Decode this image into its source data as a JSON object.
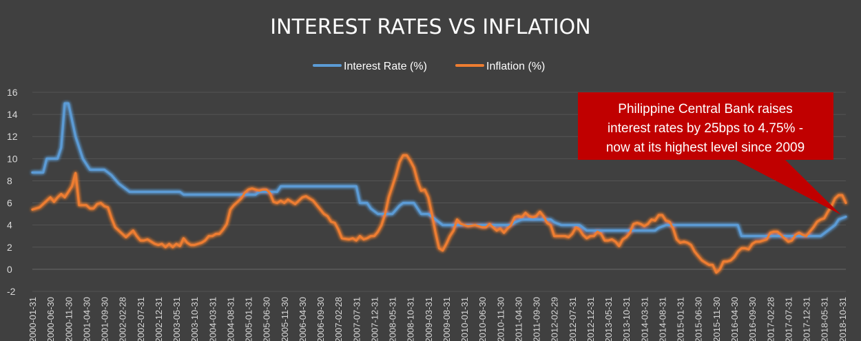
{
  "chart_data": {
    "type": "line",
    "title": "INTEREST RATES VS INFLATION",
    "ylim": [
      -2,
      16
    ],
    "y_ticks": [
      "16",
      "14",
      "12",
      "10",
      "8",
      "6",
      "4",
      "2",
      "0",
      "-2"
    ],
    "grid": "horizontal",
    "legend_position": "top-center",
    "x_tick_labels": [
      "2000-01-31",
      "2000-06-30",
      "2000-11-30",
      "2001-04-30",
      "2001-09-30",
      "2002-02-28",
      "2002-07-31",
      "2002-12-31",
      "2003-05-31",
      "2003-10-31",
      "2004-03-31",
      "2004-08-31",
      "2005-01-31",
      "2005-06-30",
      "2005-11-30",
      "2006-04-30",
      "2006-09-30",
      "2007-02-28",
      "2007-07-31",
      "2007-12-31",
      "2008-05-31",
      "2008-10-31",
      "2009-03-31",
      "2009-08-31",
      "2010-01-31",
      "2010-06-30",
      "2010-11-30",
      "2011-04-30",
      "2011-09-30",
      "2012-02-29",
      "2012-07-31",
      "2012-12-31",
      "2013-05-31",
      "2013-10-31",
      "2014-03-31",
      "2014-08-31",
      "2015-01-31",
      "2015-06-30",
      "2015-11-30",
      "2016-04-30",
      "2016-09-30",
      "2017-02-28",
      "2017-07-31",
      "2017-12-31",
      "2018-05-31",
      "2018-10-31"
    ],
    "x_start": "2000-01",
    "x_end": "2018-11",
    "series": [
      {
        "name": "Interest Rate (%)",
        "color": "#5b9bd5",
        "points": [
          [
            "2000-01",
            8.75
          ],
          [
            "2000-04",
            8.75
          ],
          [
            "2000-05",
            10.0
          ],
          [
            "2000-08",
            10.0
          ],
          [
            "2000-09",
            11.0
          ],
          [
            "2000-10",
            15.0
          ],
          [
            "2000-11",
            15.0
          ],
          [
            "2000-12",
            13.5
          ],
          [
            "2001-01",
            12.0
          ],
          [
            "2001-03",
            10.0
          ],
          [
            "2001-05",
            9.0
          ],
          [
            "2001-09",
            9.0
          ],
          [
            "2001-11",
            8.5
          ],
          [
            "2002-01",
            7.75
          ],
          [
            "2002-04",
            7.0
          ],
          [
            "2003-06",
            7.0
          ],
          [
            "2003-07",
            6.75
          ],
          [
            "2005-03",
            6.75
          ],
          [
            "2005-04",
            7.0
          ],
          [
            "2005-09",
            7.0
          ],
          [
            "2005-10",
            7.5
          ],
          [
            "2007-07",
            7.5
          ],
          [
            "2007-08",
            6.0
          ],
          [
            "2007-10",
            6.0
          ],
          [
            "2007-11",
            5.5
          ],
          [
            "2008-01",
            5.0
          ],
          [
            "2008-05",
            5.0
          ],
          [
            "2008-07",
            5.75
          ],
          [
            "2008-08",
            6.0
          ],
          [
            "2008-11",
            6.0
          ],
          [
            "2009-01",
            5.0
          ],
          [
            "2009-03",
            5.0
          ],
          [
            "2009-06",
            4.25
          ],
          [
            "2009-07",
            4.0
          ],
          [
            "2011-02",
            4.0
          ],
          [
            "2011-03",
            4.25
          ],
          [
            "2011-05",
            4.5
          ],
          [
            "2012-01",
            4.5
          ],
          [
            "2012-02",
            4.25
          ],
          [
            "2012-04",
            4.0
          ],
          [
            "2012-09",
            4.0
          ],
          [
            "2012-11",
            3.5
          ],
          [
            "2014-06",
            3.5
          ],
          [
            "2014-07",
            3.75
          ],
          [
            "2014-09",
            4.0
          ],
          [
            "2016-05",
            4.0
          ],
          [
            "2016-06",
            3.0
          ],
          [
            "2018-04",
            3.0
          ],
          [
            "2018-05",
            3.25
          ],
          [
            "2018-06",
            3.5
          ],
          [
            "2018-08",
            4.0
          ],
          [
            "2018-09",
            4.5
          ],
          [
            "2018-11",
            4.75
          ]
        ]
      },
      {
        "name": "Inflation (%)",
        "color": "#ed7d31",
        "points": [
          [
            "2000-01",
            5.4
          ],
          [
            "2000-03",
            5.6
          ],
          [
            "2000-05",
            6.2
          ],
          [
            "2000-06",
            6.5
          ],
          [
            "2000-07",
            6.1
          ],
          [
            "2000-08",
            6.5
          ],
          [
            "2000-09",
            6.8
          ],
          [
            "2000-10",
            6.5
          ],
          [
            "2000-11",
            7.0
          ],
          [
            "2000-12",
            7.5
          ],
          [
            "2001-01",
            8.7
          ],
          [
            "2001-02",
            5.8
          ],
          [
            "2001-04",
            5.8
          ],
          [
            "2001-05",
            5.5
          ],
          [
            "2001-06",
            5.5
          ],
          [
            "2001-07",
            5.9
          ],
          [
            "2001-08",
            6.0
          ],
          [
            "2001-09",
            5.7
          ],
          [
            "2001-10",
            5.6
          ],
          [
            "2001-11",
            4.6
          ],
          [
            "2001-12",
            3.8
          ],
          [
            "2002-02",
            3.2
          ],
          [
            "2002-03",
            2.9
          ],
          [
            "2002-05",
            3.5
          ],
          [
            "2002-06",
            3.0
          ],
          [
            "2002-07",
            2.6
          ],
          [
            "2002-08",
            2.6
          ],
          [
            "2002-09",
            2.7
          ],
          [
            "2002-11",
            2.3
          ],
          [
            "2002-12",
            2.2
          ],
          [
            "2003-01",
            2.3
          ],
          [
            "2003-02",
            2.0
          ],
          [
            "2003-03",
            2.3
          ],
          [
            "2003-04",
            2.0
          ],
          [
            "2003-05",
            2.3
          ],
          [
            "2003-06",
            2.1
          ],
          [
            "2003-07",
            2.8
          ],
          [
            "2003-08",
            2.4
          ],
          [
            "2003-09",
            2.2
          ],
          [
            "2003-10",
            2.2
          ],
          [
            "2003-12",
            2.4
          ],
          [
            "2004-01",
            2.6
          ],
          [
            "2004-02",
            3.0
          ],
          [
            "2004-03",
            3.0
          ],
          [
            "2004-04",
            3.2
          ],
          [
            "2004-05",
            3.2
          ],
          [
            "2004-06",
            3.6
          ],
          [
            "2004-07",
            4.1
          ],
          [
            "2004-08",
            5.4
          ],
          [
            "2004-09",
            5.8
          ],
          [
            "2004-10",
            6.1
          ],
          [
            "2004-11",
            6.4
          ],
          [
            "2004-12",
            6.9
          ],
          [
            "2005-01",
            7.2
          ],
          [
            "2005-02",
            7.3
          ],
          [
            "2005-03",
            7.2
          ],
          [
            "2005-04",
            7.1
          ],
          [
            "2005-05",
            7.2
          ],
          [
            "2005-06",
            7.2
          ],
          [
            "2005-07",
            6.9
          ],
          [
            "2005-08",
            6.1
          ],
          [
            "2005-09",
            6.0
          ],
          [
            "2005-10",
            6.2
          ],
          [
            "2005-11",
            6.0
          ],
          [
            "2005-12",
            6.3
          ],
          [
            "2006-02",
            5.9
          ],
          [
            "2006-04",
            6.5
          ],
          [
            "2006-05",
            6.6
          ],
          [
            "2006-06",
            6.4
          ],
          [
            "2006-07",
            6.2
          ],
          [
            "2006-08",
            5.8
          ],
          [
            "2006-09",
            5.4
          ],
          [
            "2006-10",
            5.0
          ],
          [
            "2006-11",
            4.8
          ],
          [
            "2006-12",
            4.3
          ],
          [
            "2007-01",
            4.2
          ],
          [
            "2007-02",
            3.6
          ],
          [
            "2007-03",
            2.8
          ],
          [
            "2007-05",
            2.7
          ],
          [
            "2007-06",
            2.8
          ],
          [
            "2007-07",
            2.6
          ],
          [
            "2007-08",
            3.0
          ],
          [
            "2007-09",
            2.7
          ],
          [
            "2007-10",
            2.8
          ],
          [
            "2007-11",
            3.0
          ],
          [
            "2007-12",
            3.0
          ],
          [
            "2008-01",
            3.4
          ],
          [
            "2008-02",
            4.0
          ],
          [
            "2008-03",
            5.0
          ],
          [
            "2008-04",
            6.5
          ],
          [
            "2008-05",
            7.5
          ],
          [
            "2008-06",
            8.5
          ],
          [
            "2008-07",
            9.7
          ],
          [
            "2008-08",
            10.3
          ],
          [
            "2008-09",
            10.3
          ],
          [
            "2008-10",
            9.8
          ],
          [
            "2008-11",
            9.2
          ],
          [
            "2008-12",
            8.0
          ],
          [
            "2009-01",
            7.1
          ],
          [
            "2009-02",
            7.2
          ],
          [
            "2009-03",
            6.5
          ],
          [
            "2009-04",
            5.0
          ],
          [
            "2009-05",
            3.3
          ],
          [
            "2009-06",
            1.9
          ],
          [
            "2009-07",
            1.7
          ],
          [
            "2009-08",
            2.3
          ],
          [
            "2009-09",
            3.0
          ],
          [
            "2009-10",
            3.5
          ],
          [
            "2009-11",
            4.5
          ],
          [
            "2009-12",
            4.1
          ],
          [
            "2010-02",
            3.9
          ],
          [
            "2010-04",
            4.0
          ],
          [
            "2010-06",
            3.8
          ],
          [
            "2010-07",
            3.8
          ],
          [
            "2010-08",
            4.1
          ],
          [
            "2010-09",
            3.8
          ],
          [
            "2010-10",
            3.5
          ],
          [
            "2010-11",
            3.7
          ],
          [
            "2010-12",
            3.3
          ],
          [
            "2011-01",
            3.7
          ],
          [
            "2011-02",
            4.0
          ],
          [
            "2011-03",
            4.7
          ],
          [
            "2011-04",
            4.8
          ],
          [
            "2011-05",
            4.7
          ],
          [
            "2011-06",
            5.1
          ],
          [
            "2011-07",
            4.8
          ],
          [
            "2011-08",
            4.7
          ],
          [
            "2011-09",
            4.8
          ],
          [
            "2011-10",
            5.2
          ],
          [
            "2011-11",
            4.8
          ],
          [
            "2011-12",
            4.2
          ],
          [
            "2012-01",
            4.0
          ],
          [
            "2012-02",
            3.0
          ],
          [
            "2012-03",
            3.0
          ],
          [
            "2012-04",
            3.0
          ],
          [
            "2012-05",
            3.0
          ],
          [
            "2012-06",
            2.9
          ],
          [
            "2012-07",
            3.2
          ],
          [
            "2012-08",
            3.8
          ],
          [
            "2012-09",
            3.6
          ],
          [
            "2012-10",
            3.1
          ],
          [
            "2012-11",
            2.8
          ],
          [
            "2012-12",
            3.0
          ],
          [
            "2013-01",
            3.0
          ],
          [
            "2013-02",
            3.4
          ],
          [
            "2013-03",
            3.2
          ],
          [
            "2013-04",
            2.6
          ],
          [
            "2013-05",
            2.6
          ],
          [
            "2013-06",
            2.7
          ],
          [
            "2013-07",
            2.5
          ],
          [
            "2013-08",
            2.1
          ],
          [
            "2013-09",
            2.7
          ],
          [
            "2013-10",
            2.9
          ],
          [
            "2013-11",
            3.3
          ],
          [
            "2013-12",
            4.1
          ],
          [
            "2014-01",
            4.2
          ],
          [
            "2014-02",
            4.1
          ],
          [
            "2014-03",
            3.9
          ],
          [
            "2014-04",
            4.1
          ],
          [
            "2014-05",
            4.5
          ],
          [
            "2014-06",
            4.4
          ],
          [
            "2014-07",
            4.9
          ],
          [
            "2014-08",
            4.9
          ],
          [
            "2014-09",
            4.4
          ],
          [
            "2014-10",
            4.3
          ],
          [
            "2014-11",
            3.7
          ],
          [
            "2014-12",
            2.7
          ],
          [
            "2015-01",
            2.4
          ],
          [
            "2015-02",
            2.5
          ],
          [
            "2015-03",
            2.4
          ],
          [
            "2015-04",
            2.2
          ],
          [
            "2015-05",
            1.6
          ],
          [
            "2015-06",
            1.2
          ],
          [
            "2015-07",
            0.8
          ],
          [
            "2015-08",
            0.6
          ],
          [
            "2015-09",
            0.4
          ],
          [
            "2015-10",
            0.4
          ],
          [
            "2015-11",
            -0.3
          ],
          [
            "2015-12",
            0.0
          ],
          [
            "2016-01",
            0.7
          ],
          [
            "2016-02",
            0.7
          ],
          [
            "2016-03",
            0.8
          ],
          [
            "2016-04",
            1.1
          ],
          [
            "2016-05",
            1.6
          ],
          [
            "2016-06",
            1.9
          ],
          [
            "2016-07",
            1.9
          ],
          [
            "2016-08",
            1.8
          ],
          [
            "2016-09",
            2.3
          ],
          [
            "2016-10",
            2.5
          ],
          [
            "2016-11",
            2.5
          ],
          [
            "2016-12",
            2.6
          ],
          [
            "2017-01",
            2.7
          ],
          [
            "2017-02",
            3.3
          ],
          [
            "2017-03",
            3.4
          ],
          [
            "2017-04",
            3.4
          ],
          [
            "2017-05",
            3.1
          ],
          [
            "2017-06",
            2.8
          ],
          [
            "2017-07",
            2.5
          ],
          [
            "2017-08",
            2.6
          ],
          [
            "2017-09",
            3.1
          ],
          [
            "2017-10",
            3.3
          ],
          [
            "2017-11",
            3.1
          ],
          [
            "2017-12",
            3.0
          ],
          [
            "2018-01",
            3.4
          ],
          [
            "2018-02",
            3.8
          ],
          [
            "2018-03",
            4.3
          ],
          [
            "2018-04",
            4.5
          ],
          [
            "2018-05",
            4.6
          ],
          [
            "2018-06",
            5.2
          ],
          [
            "2018-07",
            5.7
          ],
          [
            "2018-08",
            6.4
          ],
          [
            "2018-09",
            6.7
          ],
          [
            "2018-10",
            6.7
          ],
          [
            "2018-11",
            6.0
          ]
        ]
      }
    ],
    "annotation": {
      "lines": [
        "Philippine Central Bank raises",
        "interest rates by 25bps to 4.75% -",
        "now at its highest level since 2009"
      ],
      "bg_color": "#c00000",
      "points_to": [
        "2018-10",
        4.75
      ]
    }
  }
}
